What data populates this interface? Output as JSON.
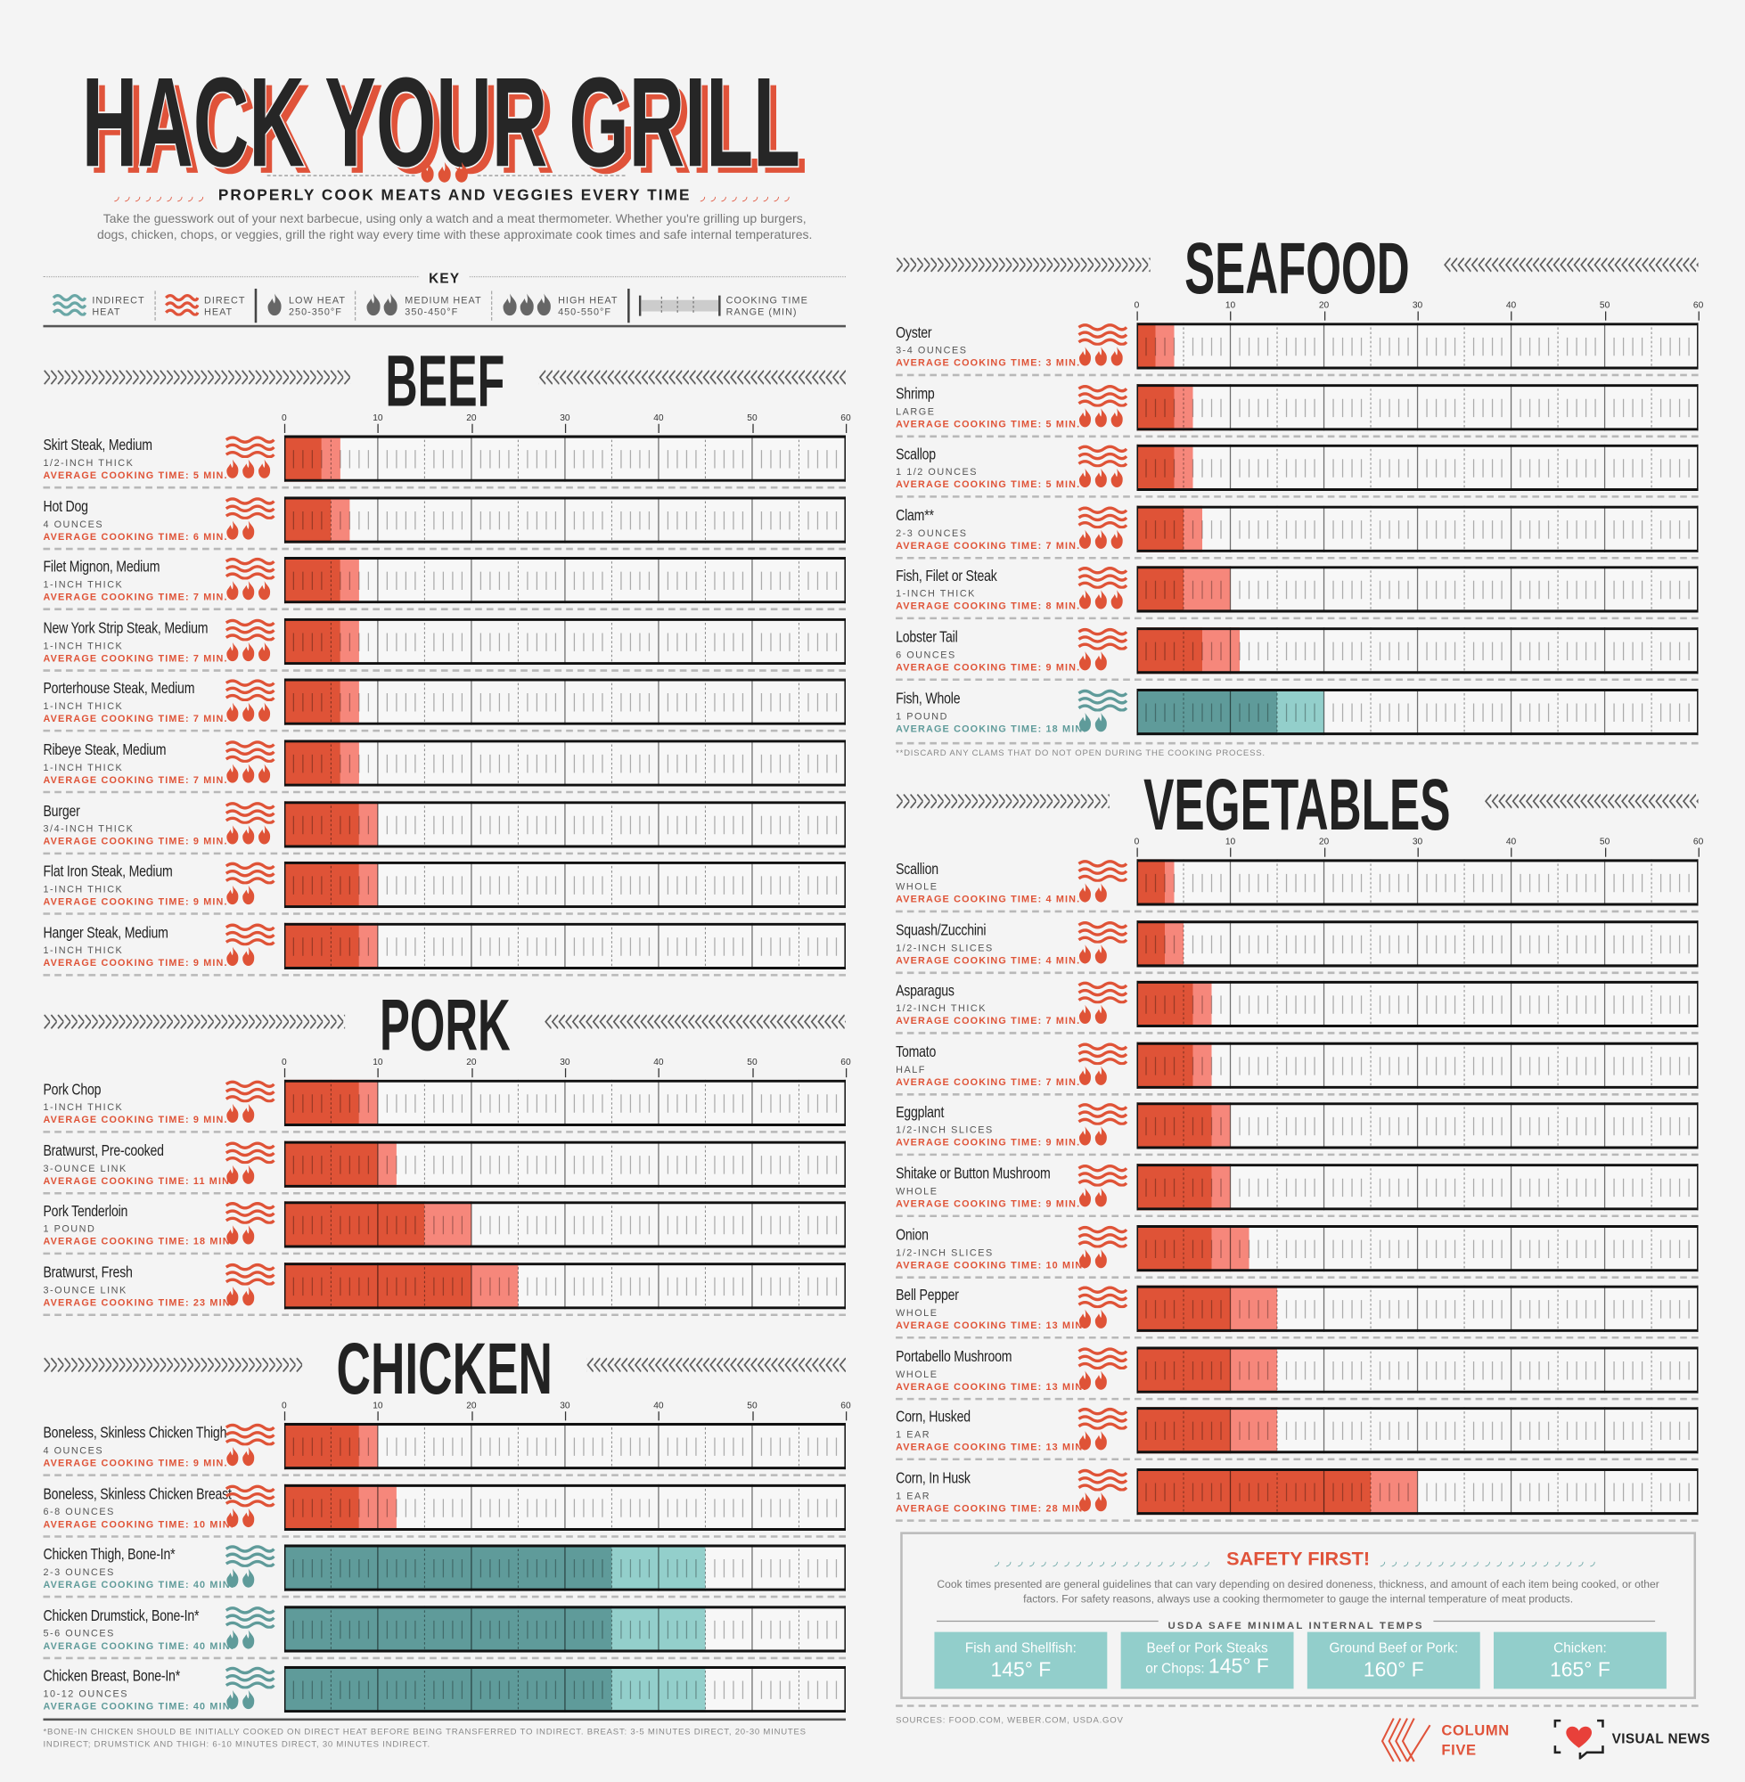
{
  "header": {
    "title": "HACK YOUR GRILL",
    "subtitle": "PROPERLY COOK MEATS AND VEGGIES EVERY TIME",
    "intro": "Take the guesswork out of your next barbecue, using only a watch and a meat thermometer. Whether you're grilling up burgers, dogs, chicken, chops, or veggies, grill the right way every time with these approximate cook times and safe internal temperatures."
  },
  "key": {
    "title": "KEY",
    "indirect": [
      "INDIRECT",
      "HEAT"
    ],
    "direct": [
      "DIRECT",
      "HEAT"
    ],
    "low": [
      "LOW HEAT",
      "250-350°F"
    ],
    "medium": [
      "MEDIUM HEAT",
      "350-450°F"
    ],
    "high": [
      "HIGH HEAT",
      "450-550°F"
    ],
    "range": [
      "COOKING TIME",
      "RANGE (MIN)"
    ]
  },
  "colors": {
    "direct_dark": "#df5337",
    "direct_light": "#f6877b",
    "indirect_dark": "#5f9b9a",
    "indirect_light": "#93cfcb",
    "text_dark": "#222222",
    "background": "#f4f4f4"
  },
  "chart_data": [
    {
      "type": "range-bar",
      "title": "BEEF",
      "xlim": [
        0,
        60
      ],
      "ticks": [
        0,
        10,
        20,
        30,
        40,
        50,
        60
      ],
      "unit": "min",
      "rows": [
        {
          "name": "Skirt Steak, Medium",
          "detail": "1/2-INCH THICK",
          "avg": "AVERAGE COOKING TIME: 5 MIN.",
          "heat": "direct",
          "flames": 3,
          "range": [
            4,
            6
          ]
        },
        {
          "name": "Hot Dog",
          "detail": "4 OUNCES",
          "avg": "AVERAGE COOKING TIME: 6 MIN.",
          "heat": "direct",
          "flames": 2,
          "range": [
            5,
            7
          ]
        },
        {
          "name": "Filet Mignon, Medium",
          "detail": "1-INCH THICK",
          "avg": "AVERAGE COOKING TIME: 7 MIN.",
          "heat": "direct",
          "flames": 3,
          "range": [
            6,
            8
          ]
        },
        {
          "name": "New York Strip Steak, Medium",
          "detail": "1-INCH THICK",
          "avg": "AVERAGE COOKING TIME: 7 MIN.",
          "heat": "direct",
          "flames": 3,
          "range": [
            6,
            8
          ]
        },
        {
          "name": "Porterhouse Steak, Medium",
          "detail": "1-INCH THICK",
          "avg": "AVERAGE COOKING TIME: 7 MIN.",
          "heat": "direct",
          "flames": 3,
          "range": [
            6,
            8
          ]
        },
        {
          "name": "Ribeye Steak, Medium",
          "detail": "1-INCH THICK",
          "avg": "AVERAGE COOKING TIME: 7 MIN.",
          "heat": "direct",
          "flames": 3,
          "range": [
            6,
            8
          ]
        },
        {
          "name": "Burger",
          "detail": "3/4-INCH THICK",
          "avg": "AVERAGE COOKING TIME: 9 MIN.",
          "heat": "direct",
          "flames": 3,
          "range": [
            8,
            10
          ]
        },
        {
          "name": "Flat Iron Steak, Medium",
          "detail": "1-INCH THICK",
          "avg": "AVERAGE COOKING TIME: 9 MIN.",
          "heat": "direct",
          "flames": 2,
          "range": [
            8,
            10
          ]
        },
        {
          "name": "Hanger Steak, Medium",
          "detail": "1-INCH THICK",
          "avg": "AVERAGE COOKING TIME: 9 MIN.",
          "heat": "direct",
          "flames": 2,
          "range": [
            8,
            10
          ]
        }
      ]
    },
    {
      "type": "range-bar",
      "title": "PORK",
      "xlim": [
        0,
        60
      ],
      "ticks": [
        0,
        10,
        20,
        30,
        40,
        50,
        60
      ],
      "unit": "min",
      "rows": [
        {
          "name": "Pork Chop",
          "detail": "1-INCH THICK",
          "avg": "AVERAGE COOKING TIME: 9 MIN.",
          "heat": "direct",
          "flames": 2,
          "range": [
            8,
            10
          ]
        },
        {
          "name": "Bratwurst, Pre-cooked",
          "detail": "3-OUNCE LINK",
          "avg": "AVERAGE COOKING TIME: 11 MIN.",
          "heat": "direct",
          "flames": 2,
          "range": [
            10,
            12
          ]
        },
        {
          "name": "Pork Tenderloin",
          "detail": "1 POUND",
          "avg": "AVERAGE COOKING TIME: 18 MIN.",
          "heat": "direct",
          "flames": 2,
          "range": [
            15,
            20
          ]
        },
        {
          "name": "Bratwurst, Fresh",
          "detail": "3-OUNCE LINK",
          "avg": "AVERAGE COOKING TIME: 23 MIN.",
          "heat": "direct",
          "flames": 2,
          "range": [
            20,
            25
          ]
        }
      ]
    },
    {
      "type": "range-bar",
      "title": "CHICKEN",
      "xlim": [
        0,
        60
      ],
      "ticks": [
        0,
        10,
        20,
        30,
        40,
        50,
        60
      ],
      "unit": "min",
      "rows": [
        {
          "name": "Boneless, Skinless Chicken Thigh",
          "detail": "4 OUNCES",
          "avg": "AVERAGE COOKING TIME: 9 MIN.",
          "heat": "direct",
          "flames": 2,
          "range": [
            8,
            10
          ]
        },
        {
          "name": "Boneless, Skinless Chicken Breast",
          "detail": "6-8 OUNCES",
          "avg": "AVERAGE COOKING TIME: 10 MIN.",
          "heat": "direct",
          "flames": 2,
          "range": [
            8,
            12
          ]
        },
        {
          "name": "Chicken Thigh, Bone-In*",
          "detail": "2-3 OUNCES",
          "avg": "AVERAGE COOKING TIME: 40 MIN.",
          "heat": "indirect",
          "flames": 2,
          "range": [
            35,
            45
          ]
        },
        {
          "name": "Chicken Drumstick, Bone-In*",
          "detail": "5-6 OUNCES",
          "avg": "AVERAGE COOKING TIME: 40 MIN.",
          "heat": "indirect",
          "flames": 2,
          "range": [
            35,
            45
          ]
        },
        {
          "name": "Chicken Breast, Bone-In*",
          "detail": "10-12 OUNCES",
          "avg": "AVERAGE COOKING TIME: 40 MIN.",
          "heat": "indirect",
          "flames": 2,
          "range": [
            35,
            45
          ]
        }
      ]
    },
    {
      "type": "range-bar",
      "title": "SEAFOOD",
      "xlim": [
        0,
        60
      ],
      "ticks": [
        0,
        10,
        20,
        30,
        40,
        50,
        60
      ],
      "unit": "min",
      "rows": [
        {
          "name": "Oyster",
          "detail": "3-4 OUNCES",
          "avg": "AVERAGE COOKING TIME: 3 MIN.",
          "heat": "direct",
          "flames": 3,
          "range": [
            2,
            4
          ]
        },
        {
          "name": "Shrimp",
          "detail": "LARGE",
          "avg": "AVERAGE COOKING TIME: 5 MIN.",
          "heat": "direct",
          "flames": 3,
          "range": [
            4,
            6
          ]
        },
        {
          "name": "Scallop",
          "detail": "1 1/2 OUNCES",
          "avg": "AVERAGE COOKING TIME: 5 MIN.",
          "heat": "direct",
          "flames": 3,
          "range": [
            4,
            6
          ]
        },
        {
          "name": "Clam**",
          "detail": "2-3 OUNCES",
          "avg": "AVERAGE COOKING TIME: 7 MIN.",
          "heat": "direct",
          "flames": 3,
          "range": [
            5,
            7
          ]
        },
        {
          "name": "Fish, Filet or Steak",
          "detail": "1-INCH THICK",
          "avg": "AVERAGE COOKING TIME: 8 MIN.",
          "heat": "direct",
          "flames": 3,
          "range": [
            5,
            10
          ]
        },
        {
          "name": "Lobster Tail",
          "detail": "6 OUNCES",
          "avg": "AVERAGE COOKING TIME: 9 MIN.",
          "heat": "direct",
          "flames": 2,
          "range": [
            7,
            11
          ]
        },
        {
          "name": "Fish, Whole",
          "detail": "1 POUND",
          "avg": "AVERAGE COOKING TIME: 18 MIN.",
          "heat": "indirect",
          "flames": 2,
          "range": [
            15,
            20
          ]
        }
      ]
    },
    {
      "type": "range-bar",
      "title": "VEGETABLES",
      "xlim": [
        0,
        60
      ],
      "ticks": [
        0,
        10,
        20,
        30,
        40,
        50,
        60
      ],
      "unit": "min",
      "rows": [
        {
          "name": "Scallion",
          "detail": "WHOLE",
          "avg": "AVERAGE COOKING TIME: 4 MIN.",
          "heat": "direct",
          "flames": 2,
          "range": [
            3,
            4
          ]
        },
        {
          "name": "Squash/Zucchini",
          "detail": "1/2-INCH SLICES",
          "avg": "AVERAGE COOKING TIME: 4 MIN.",
          "heat": "direct",
          "flames": 2,
          "range": [
            3,
            5
          ]
        },
        {
          "name": "Asparagus",
          "detail": "1/2-INCH THICK",
          "avg": "AVERAGE COOKING TIME: 7 MIN.",
          "heat": "direct",
          "flames": 2,
          "range": [
            6,
            8
          ]
        },
        {
          "name": "Tomato",
          "detail": "HALF",
          "avg": "AVERAGE COOKING TIME: 7 MIN.",
          "heat": "direct",
          "flames": 2,
          "range": [
            6,
            8
          ]
        },
        {
          "name": "Eggplant",
          "detail": "1/2-INCH SLICES",
          "avg": "AVERAGE COOKING TIME: 9 MIN.",
          "heat": "direct",
          "flames": 2,
          "range": [
            8,
            10
          ]
        },
        {
          "name": "Shitake or Button Mushroom",
          "detail": "WHOLE",
          "avg": "AVERAGE COOKING TIME: 9 MIN.",
          "heat": "direct",
          "flames": 2,
          "range": [
            8,
            10
          ]
        },
        {
          "name": "Onion",
          "detail": "1/2-INCH SLICES",
          "avg": "AVERAGE COOKING TIME: 10 MIN.",
          "heat": "direct",
          "flames": 2,
          "range": [
            8,
            12
          ]
        },
        {
          "name": "Bell Pepper",
          "detail": "WHOLE",
          "avg": "AVERAGE COOKING TIME: 13 MIN.",
          "heat": "direct",
          "flames": 2,
          "range": [
            10,
            15
          ]
        },
        {
          "name": "Portabello Mushroom",
          "detail": "WHOLE",
          "avg": "AVERAGE COOKING TIME: 13 MIN.",
          "heat": "direct",
          "flames": 2,
          "range": [
            10,
            15
          ]
        },
        {
          "name": "Corn, Husked",
          "detail": "1 EAR",
          "avg": "AVERAGE COOKING TIME: 13 MIN.",
          "heat": "direct",
          "flames": 2,
          "range": [
            10,
            15
          ]
        },
        {
          "name": "Corn, In Husk",
          "detail": "1 EAR",
          "avg": "AVERAGE COOKING TIME: 28 MIN.",
          "heat": "direct",
          "flames": 2,
          "range": [
            25,
            30
          ]
        }
      ]
    }
  ],
  "notes": {
    "clams": "**DISCARD ANY CLAMS THAT DO NOT OPEN DURING THE COOKING PROCESS.",
    "bone_in": "*BONE-IN CHICKEN SHOULD BE INITIALLY COOKED ON DIRECT HEAT BEFORE BEING TRANSFERRED TO INDIRECT. BREAST: 3-5 MINUTES DIRECT, 20-30 MINUTES INDIRECT; DRUMSTICK AND THIGH: 6-10 MINUTES DIRECT, 30 MINUTES INDIRECT.",
    "sources": "SOURCES: FOOD.COM, WEBER.COM, USDA.GOV"
  },
  "safety": {
    "title": "SAFETY FIRST!",
    "text": "Cook times presented are general guidelines that can vary depending on desired doneness, thickness, and amount of each item being cooked, or other factors. For safety reasons, always use a cooking thermometer to gauge the internal temperature of meat products.",
    "temps_title": "USDA SAFE MINIMAL INTERNAL TEMPS",
    "temps": [
      {
        "label": "Fish and Shellfish:",
        "value": "145° F"
      },
      {
        "label": "Beef or Pork Steaks",
        "label2": "or Chops:",
        "value": "145° F"
      },
      {
        "label": "Ground Beef or Pork:",
        "value": "160° F"
      },
      {
        "label": "Chicken:",
        "value": "165° F"
      }
    ]
  },
  "logos": {
    "column_five": [
      "COLUMN",
      "FIVE"
    ],
    "visual_news": "VISUAL NEWS"
  }
}
